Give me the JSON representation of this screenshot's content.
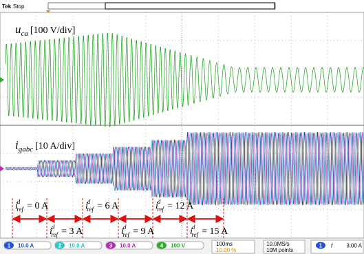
{
  "header": {
    "brand": "Tek",
    "status": "Stop"
  },
  "traces": [
    {
      "symbol": "u",
      "sub": "ca",
      "scale": "[100 V/div]"
    },
    {
      "symbol": "i",
      "sub": "gabc",
      "scale": "[10 A/div]"
    }
  ],
  "annotations": [
    {
      "symbol": "i",
      "sup": "d",
      "sub": "ref",
      "text": "= 0 A"
    },
    {
      "symbol": "i",
      "sup": "d",
      "sub": "ref",
      "text": "= 3 A"
    },
    {
      "symbol": "i",
      "sup": "d",
      "sub": "ref",
      "text": "= 6 A"
    },
    {
      "symbol": "i",
      "sup": "d",
      "sub": "ref",
      "text": "= 9 A"
    },
    {
      "symbol": "i",
      "sup": "d",
      "sub": "ref",
      "text": "= 12 A"
    },
    {
      "symbol": "i",
      "sup": "d",
      "sub": "ref",
      "text": "= 15 A"
    }
  ],
  "status_bar": {
    "channels": [
      {
        "id": "1",
        "scale": "10.0 A",
        "color": "#1f4fd8"
      },
      {
        "id": "2",
        "scale": "10.0 A",
        "color": "#2cc6c6"
      },
      {
        "id": "3",
        "scale": "10.0 A",
        "color": "#b32cb3"
      },
      {
        "id": "4",
        "scale": "100 V",
        "color": "#2ca82c"
      }
    ],
    "timebase": "100ms",
    "trigger_position": "10.00 %",
    "sample_rate": "10.0MS/s",
    "record_length": "10M points",
    "trigger_source": "1",
    "trigger_slope": "f",
    "trigger_level": "3.00 A"
  }
}
